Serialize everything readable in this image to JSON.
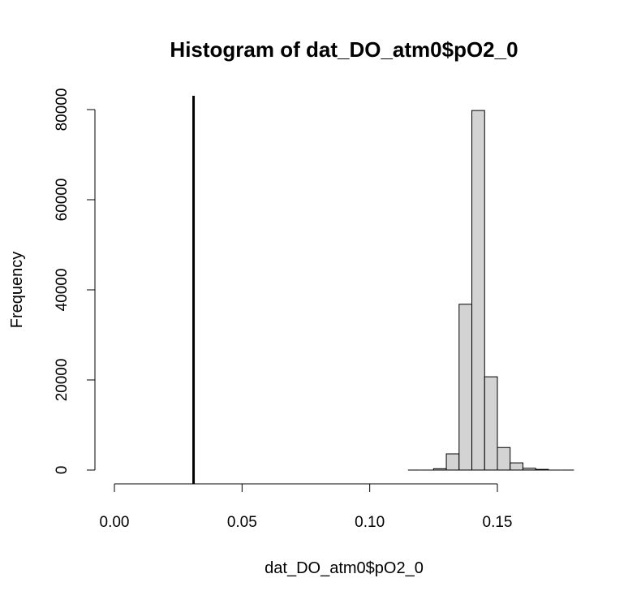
{
  "chart_data": {
    "type": "bar",
    "title": "Histogram of dat_DO_atm0$pO2_0",
    "xlabel": "dat_DO_atm0$pO2_0",
    "ylabel": "Frequency",
    "xlim": [
      0,
      0.18
    ],
    "ylim": [
      0,
      80000
    ],
    "grid": false,
    "x_ticks": [
      0.0,
      0.05,
      0.1,
      0.15
    ],
    "x_tick_labels": [
      "0.00",
      "0.05",
      "0.10",
      "0.15"
    ],
    "y_ticks": [
      0,
      20000,
      40000,
      60000,
      80000
    ],
    "y_tick_labels": [
      "0",
      "20000",
      "40000",
      "60000",
      "80000"
    ],
    "bin_width": 0.005,
    "bins": [
      {
        "x0": 0.115,
        "x1": 0.12,
        "count": 0
      },
      {
        "x0": 0.12,
        "x1": 0.125,
        "count": 0
      },
      {
        "x0": 0.125,
        "x1": 0.13,
        "count": 300
      },
      {
        "x0": 0.13,
        "x1": 0.135,
        "count": 3600
      },
      {
        "x0": 0.135,
        "x1": 0.14,
        "count": 36800
      },
      {
        "x0": 0.14,
        "x1": 0.145,
        "count": 79800
      },
      {
        "x0": 0.145,
        "x1": 0.15,
        "count": 20700
      },
      {
        "x0": 0.15,
        "x1": 0.155,
        "count": 5000
      },
      {
        "x0": 0.155,
        "x1": 0.16,
        "count": 1600
      },
      {
        "x0": 0.16,
        "x1": 0.165,
        "count": 400
      },
      {
        "x0": 0.165,
        "x1": 0.17,
        "count": 150
      },
      {
        "x0": 0.17,
        "x1": 0.175,
        "count": 0
      },
      {
        "x0": 0.175,
        "x1": 0.18,
        "count": 0
      }
    ],
    "reference_line": {
      "x": 0.031,
      "orientation": "vertical"
    },
    "colors": {
      "bar_fill": "#d3d3d3",
      "bar_stroke": "#000000",
      "reference_line": "#000000"
    }
  }
}
